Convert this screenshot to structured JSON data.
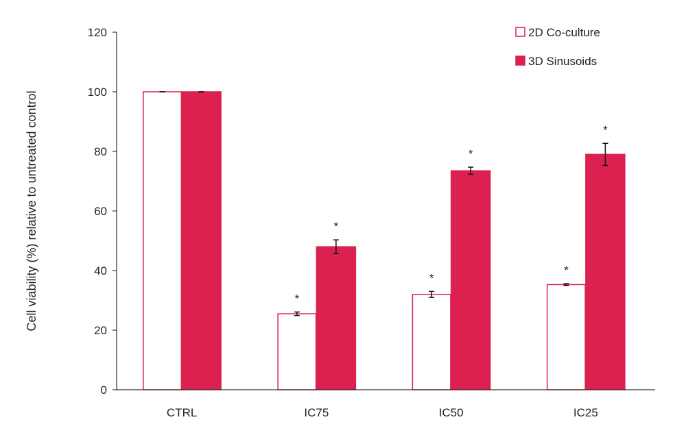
{
  "chart_data": {
    "type": "bar",
    "title": "",
    "xlabel": "",
    "ylabel": "Cell viability (%) relative to untreated control",
    "ylim": [
      0,
      120
    ],
    "yticks": [
      0,
      20,
      40,
      60,
      80,
      100,
      120
    ],
    "categories": [
      "CTRL",
      "IC75",
      "IC50",
      "IC25"
    ],
    "series": [
      {
        "name": "2D Co-culture",
        "style": "outline",
        "color": "#dc2150",
        "values": [
          100,
          25.5,
          32,
          35.3
        ],
        "errors": [
          0,
          0.6,
          1.0,
          0.3
        ],
        "significance": [
          "",
          "*",
          "*",
          "*"
        ]
      },
      {
        "name": "3D Sinusoids",
        "style": "filled",
        "color": "#dc2150",
        "values": [
          100,
          48,
          73.5,
          79
        ],
        "errors": [
          0,
          2.3,
          1.2,
          3.7
        ],
        "significance": [
          "",
          "*",
          "*",
          "*"
        ]
      }
    ],
    "legend_position": "top-right",
    "grid": false
  }
}
